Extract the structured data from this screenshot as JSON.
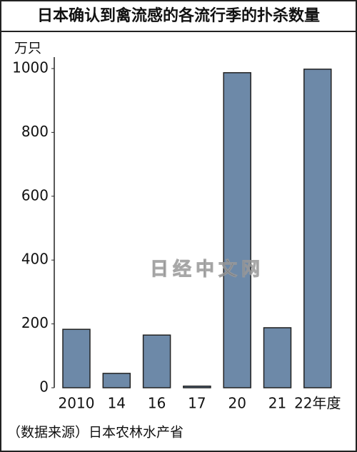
{
  "chart_data": {
    "type": "bar",
    "title": "日本确认到禽流感的各流行季的扑杀数量",
    "y_label": "万只",
    "categories": [
      "2010",
      "14",
      "16",
      "17",
      "20",
      "21",
      "22年度"
    ],
    "values": [
      183,
      45,
      165,
      5,
      987,
      188,
      998
    ],
    "color": "#6d89a8",
    "ylim": [
      0,
      1000
    ],
    "yticks": [
      0,
      200,
      400,
      600,
      800,
      1000
    ],
    "grid": false,
    "source": "（数据来源）日本农林水产省",
    "watermark": "日经中文网"
  }
}
